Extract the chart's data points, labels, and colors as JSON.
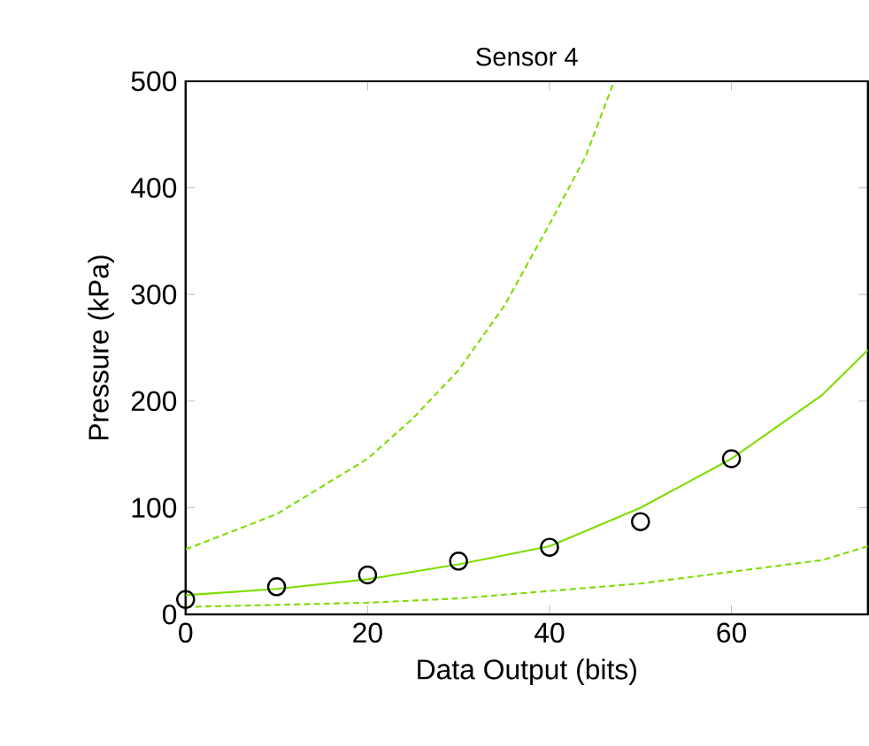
{
  "chart_data": {
    "type": "scatter",
    "title": "Sensor 4",
    "xlabel": "Data Output (bits)",
    "ylabel": "Pressure (kPa)",
    "xlim": [
      0,
      75
    ],
    "ylim": [
      0,
      500
    ],
    "xticks": [
      0,
      20,
      40,
      60
    ],
    "yticks": [
      0,
      100,
      200,
      300,
      400,
      500
    ],
    "grid": false,
    "series": [
      {
        "color": "#000000",
        "marker": "circle",
        "x": [
          0,
          10,
          20,
          30,
          40,
          50,
          60
        ],
        "values": [
          14,
          26,
          37,
          50,
          63,
          87,
          146
        ]
      },
      {
        "type": "line",
        "color": "#7fdd00",
        "marker": "none",
        "line_style": "solid",
        "x": [
          0,
          10,
          20,
          30,
          40,
          50,
          60,
          70,
          75
        ],
        "values": [
          18,
          24,
          33,
          47,
          64,
          100,
          146,
          206,
          248
        ]
      },
      {
        "type": "line",
        "color": "#7fdd00",
        "marker": "none",
        "line_style": "dashed",
        "x": [
          0,
          10,
          20,
          25,
          30,
          35,
          40,
          44,
          47
        ],
        "values": [
          61,
          94,
          146,
          184,
          229,
          289,
          366,
          430,
          498
        ]
      },
      {
        "type": "line",
        "color": "#7fdd00",
        "marker": "none",
        "line_style": "dashed",
        "x": [
          0,
          20,
          30,
          40,
          50,
          60,
          70,
          75
        ],
        "values": [
          7,
          11,
          15,
          22,
          29,
          40,
          51,
          64
        ]
      }
    ]
  }
}
